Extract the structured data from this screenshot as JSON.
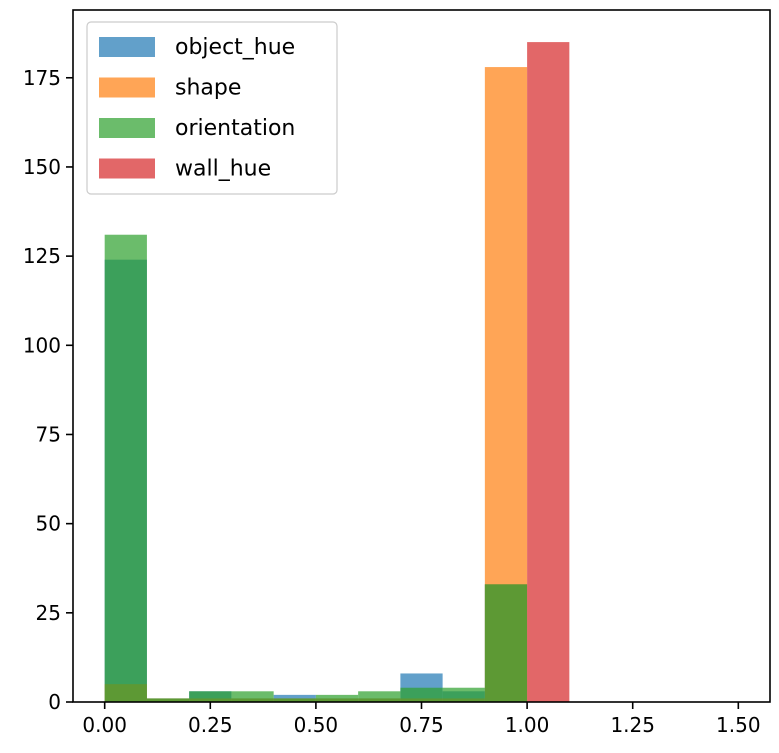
{
  "chart_data": {
    "type": "bar",
    "title": "",
    "xlabel": "",
    "ylabel": "",
    "xlim": [
      -0.075,
      1.575
    ],
    "ylim": [
      0,
      194
    ],
    "xticks": [
      0.0,
      0.25,
      0.5,
      0.75,
      1.0,
      1.25,
      1.5
    ],
    "xtick_labels": [
      "0.00",
      "0.25",
      "0.50",
      "0.75",
      "1.00",
      "1.25",
      "1.50"
    ],
    "yticks": [
      0,
      25,
      50,
      75,
      100,
      125,
      150,
      175
    ],
    "ytick_labels": [
      "0",
      "25",
      "50",
      "75",
      "100",
      "125",
      "150",
      "175"
    ],
    "bin_width": 0.1,
    "bar_opacity": 0.7,
    "grid": false,
    "legend_position": "top-left",
    "series": [
      {
        "name": "object_hue",
        "color": "#1f77b4",
        "bins": [
          {
            "x0": -0.1,
            "x1": 0.0,
            "count": 0
          },
          {
            "x0": 0.0,
            "x1": 0.1,
            "count": 124
          },
          {
            "x0": 0.1,
            "x1": 0.2,
            "count": 1
          },
          {
            "x0": 0.2,
            "x1": 0.3,
            "count": 3
          },
          {
            "x0": 0.3,
            "x1": 0.4,
            "count": 1
          },
          {
            "x0": 0.4,
            "x1": 0.5,
            "count": 2
          },
          {
            "x0": 0.5,
            "x1": 0.6,
            "count": 1
          },
          {
            "x0": 0.6,
            "x1": 0.7,
            "count": 1
          },
          {
            "x0": 0.7,
            "x1": 0.8,
            "count": 8
          },
          {
            "x0": 0.8,
            "x1": 0.9,
            "count": 3
          },
          {
            "x0": 0.9,
            "x1": 1.0,
            "count": 33
          }
        ]
      },
      {
        "name": "shape",
        "color": "#ff7f0e",
        "bins": [
          {
            "x0": 0.0,
            "x1": 0.1,
            "count": 5
          },
          {
            "x0": 0.1,
            "x1": 0.2,
            "count": 1
          },
          {
            "x0": 0.2,
            "x1": 0.3,
            "count": 1
          },
          {
            "x0": 0.3,
            "x1": 0.4,
            "count": 1
          },
          {
            "x0": 0.4,
            "x1": 0.5,
            "count": 1
          },
          {
            "x0": 0.5,
            "x1": 0.6,
            "count": 1
          },
          {
            "x0": 0.6,
            "x1": 0.7,
            "count": 1
          },
          {
            "x0": 0.7,
            "x1": 0.8,
            "count": 1
          },
          {
            "x0": 0.8,
            "x1": 0.9,
            "count": 1
          },
          {
            "x0": 0.9,
            "x1": 1.0,
            "count": 178
          }
        ]
      },
      {
        "name": "orientation",
        "color": "#2ca02c",
        "bins": [
          {
            "x0": 0.0,
            "x1": 0.1,
            "count": 131
          },
          {
            "x0": 0.1,
            "x1": 0.2,
            "count": 1
          },
          {
            "x0": 0.2,
            "x1": 0.3,
            "count": 3
          },
          {
            "x0": 0.3,
            "x1": 0.4,
            "count": 3
          },
          {
            "x0": 0.4,
            "x1": 0.5,
            "count": 1
          },
          {
            "x0": 0.5,
            "x1": 0.6,
            "count": 2
          },
          {
            "x0": 0.6,
            "x1": 0.7,
            "count": 3
          },
          {
            "x0": 0.7,
            "x1": 0.8,
            "count": 4
          },
          {
            "x0": 0.8,
            "x1": 0.9,
            "count": 4
          },
          {
            "x0": 0.9,
            "x1": 1.0,
            "count": 33
          }
        ]
      },
      {
        "name": "wall_hue",
        "color": "#d62728",
        "bins": [
          {
            "x0": 1.0,
            "x1": 1.1,
            "count": 185
          }
        ]
      }
    ]
  }
}
